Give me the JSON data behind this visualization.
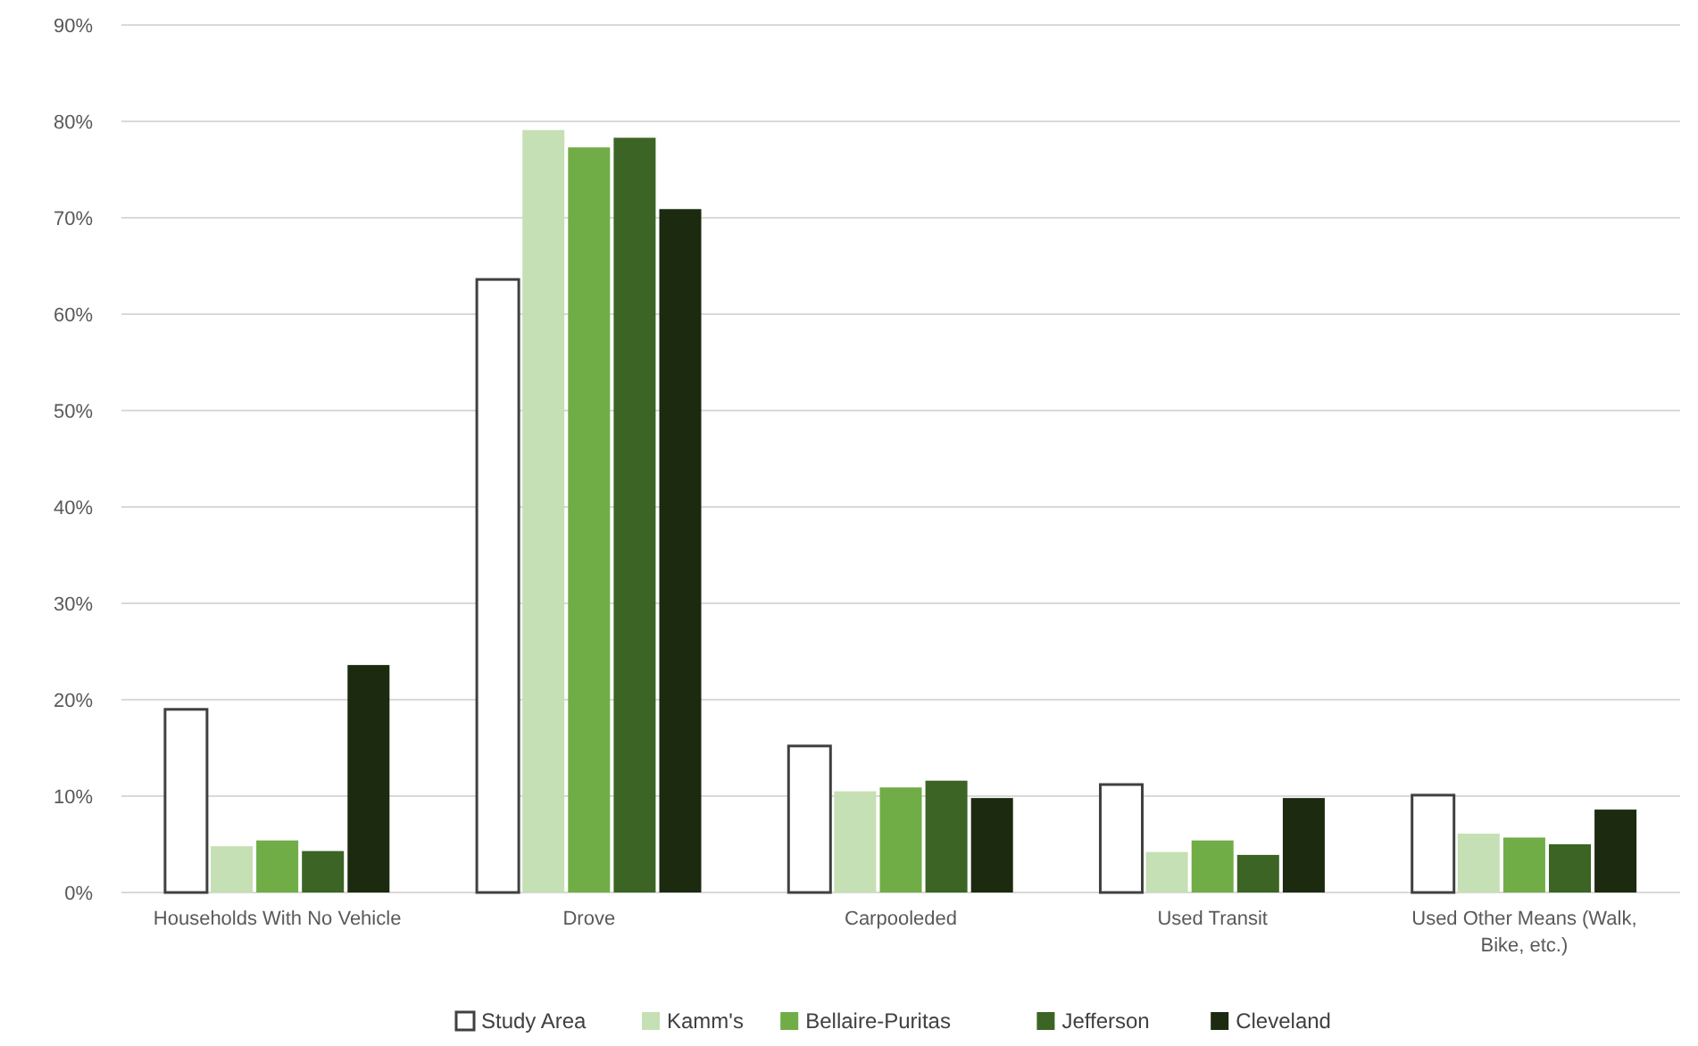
{
  "chart_data": {
    "type": "bar",
    "categories": [
      "Households With No Vehicle",
      "Drove",
      "Carpooleded",
      "Used Transit",
      "Used Other Means (Walk, Bike, etc.)"
    ],
    "series": [
      {
        "name": "Study Area",
        "color": "#ffffff",
        "values": [
          19.0,
          63.6,
          15.2,
          11.2,
          10.1
        ]
      },
      {
        "name": "Kamm's",
        "color": "#c5e0b4",
        "values": [
          4.8,
          79.1,
          10.5,
          4.2,
          6.1
        ]
      },
      {
        "name": "Bellaire-Puritas",
        "color": "#70ad47",
        "values": [
          5.4,
          77.3,
          10.9,
          5.4,
          5.7
        ]
      },
      {
        "name": "Jefferson",
        "color": "#3c6424",
        "values": [
          4.3,
          78.3,
          11.6,
          3.9,
          5.0
        ]
      },
      {
        "name": "Cleveland",
        "color": "#1c2a10",
        "values": [
          23.6,
          70.9,
          9.8,
          9.8,
          8.6
        ]
      }
    ],
    "ylim": [
      0,
      90
    ],
    "yticks": [
      {
        "value": 0,
        "label": "0%"
      },
      {
        "value": 10,
        "label": "10%"
      },
      {
        "value": 20,
        "label": "20%"
      },
      {
        "value": 30,
        "label": "30%"
      },
      {
        "value": 40,
        "label": "40%"
      },
      {
        "value": 50,
        "label": "50%"
      },
      {
        "value": 60,
        "label": "60%"
      },
      {
        "value": 70,
        "label": "70%"
      },
      {
        "value": 80,
        "label": "80%"
      },
      {
        "value": 90,
        "label": "90%"
      }
    ],
    "grid": "y",
    "legend": "bottom"
  }
}
